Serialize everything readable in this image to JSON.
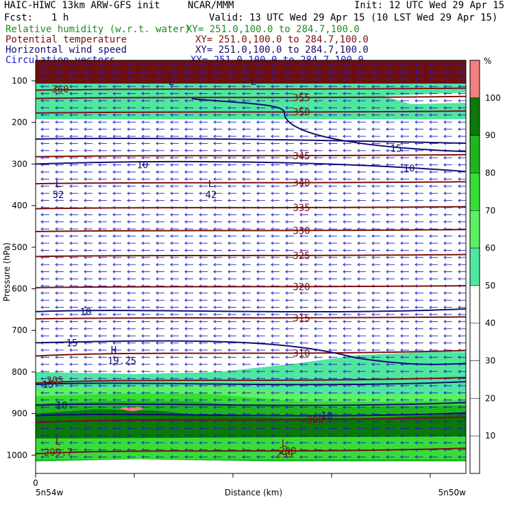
{
  "header": {
    "left_title": "HAIC-HIWC 13km ARW-GFS init",
    "center_title": "NCAR/MMM",
    "init": "Init: 12 UTC Wed 29 Apr 15",
    "fcst_label": "Fcst:",
    "fcst_value": "1 h",
    "valid": "Valid: 13 UTC Wed 29 Apr 15 (10 LST Wed 29 Apr 15)"
  },
  "fields": [
    {
      "name": "Relative humidity (w.r.t. water)",
      "xy": "XY= 251.0,100.0 to 284.7,100.0",
      "color": "#1e8c1e"
    },
    {
      "name": "Potential temperature",
      "xy": "XY= 251.0,100.0 to 284.7,100.0",
      "color": "#7a1010"
    },
    {
      "name": "Horizontal wind speed",
      "xy": "XY= 251.0,100.0 to 284.7,100.0",
      "color": "#101070"
    },
    {
      "name": "Circulation vectors",
      "xy": "XY= 251.0,100.0 to 284.7,100.0",
      "color": "#1818c8"
    }
  ],
  "colors": {
    "rh_50": "#50e6a0",
    "rh_60": "#5cf064",
    "rh_70": "#38dc38",
    "rh_80": "#20b420",
    "rh_90": "#0a780a",
    "rh_100": "#f08080",
    "theta": "#7a1010",
    "wind": "#101070",
    "vectors": "#2020c8"
  },
  "chart_data": {
    "type": "cross-section",
    "xlabel": "Distance (km)",
    "ylabel": "Pressure (hPa)",
    "x_start_tick": "0",
    "x_left_label": "5n54w",
    "x_right_label": "5n50w",
    "yticks": [
      100,
      200,
      300,
      400,
      500,
      600,
      700,
      800,
      900,
      1000
    ],
    "ylim": [
      1050,
      50
    ],
    "colorbar": {
      "unit": "%",
      "ticks": [
        10,
        20,
        30,
        40,
        50,
        60,
        70,
        80,
        90,
        100
      ],
      "colored_levels": [
        50,
        60,
        70,
        80,
        90,
        100
      ]
    },
    "theta_contours": [
      {
        "value": "360",
        "p": 120
      },
      {
        "value": "355",
        "p": 140
      },
      {
        "value": "350",
        "p": 175
      },
      {
        "value": "345",
        "p": 280
      },
      {
        "value": "340",
        "p": 345
      },
      {
        "value": "335",
        "p": 405
      },
      {
        "value": "330",
        "p": 460
      },
      {
        "value": "325",
        "p": 520
      },
      {
        "value": "320",
        "p": 595
      },
      {
        "value": "315",
        "p": 670
      },
      {
        "value": "310",
        "p": 755
      },
      {
        "value": "305",
        "p": 820
      },
      {
        "value": "300",
        "p": 915
      },
      {
        "value": "299",
        "p": 990
      }
    ],
    "wind_contours": [
      {
        "value": "10",
        "p": 655
      },
      {
        "value": "15",
        "p": 730
      },
      {
        "value": "15",
        "p": 830
      },
      {
        "value": "10",
        "p": 880
      },
      {
        "value": "10",
        "p": 905
      }
    ],
    "upper_labels": [
      "15",
      "10",
      "10"
    ],
    "markers": [
      {
        "letter": "L",
        "value": "52"
      },
      {
        "letter": "L",
        "value": "42"
      },
      {
        "letter": "H",
        "value": "19.25"
      },
      {
        "letter": "L",
        "value": "299.7"
      },
      {
        "letter": "L",
        "value": "299"
      },
      {
        "letter": "L",
        "value": ""
      },
      {
        "letter": "L",
        "value": ""
      }
    ]
  }
}
